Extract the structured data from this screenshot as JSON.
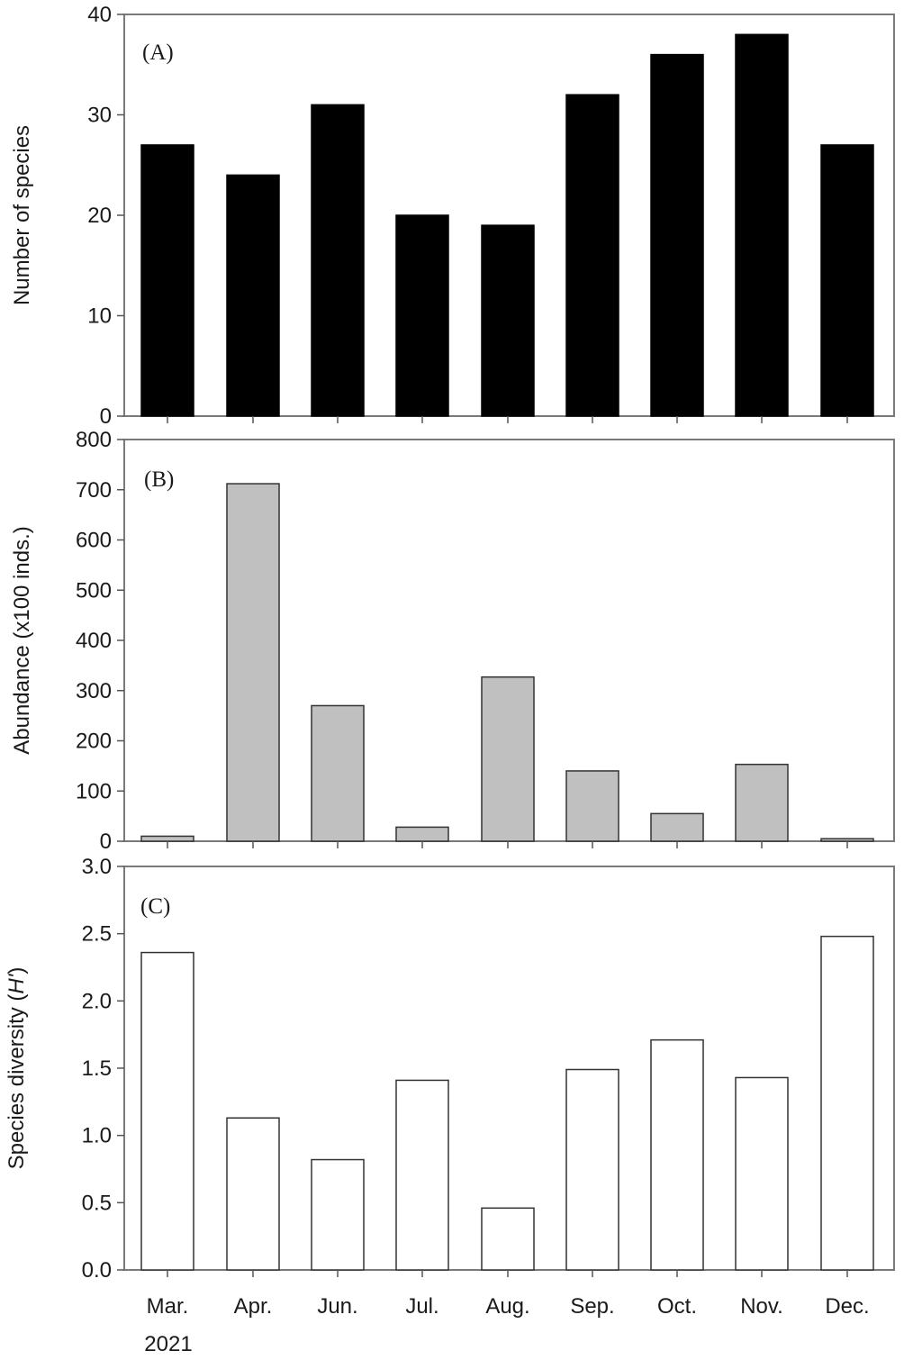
{
  "chart_data": [
    {
      "type": "bar",
      "panel_label": "(A)",
      "categories": [
        "Mar.",
        "Apr.",
        "Jun.",
        "Jul.",
        "Aug.",
        "Sep.",
        "Oct.",
        "Nov.",
        "Dec."
      ],
      "values": [
        27,
        24,
        31,
        20,
        19,
        32,
        36,
        38,
        27
      ],
      "ylabel": "Number of species",
      "ylim": [
        0,
        40
      ],
      "yticks": [
        "0",
        "10",
        "20",
        "30",
        "40"
      ],
      "bar_color": "#000000",
      "bar_stroke": "#000000",
      "grid": false
    },
    {
      "type": "bar",
      "panel_label": "(B)",
      "categories": [
        "Mar.",
        "Apr.",
        "Jun.",
        "Jul.",
        "Aug.",
        "Sep.",
        "Oct.",
        "Nov.",
        "Dec."
      ],
      "values": [
        10,
        712,
        270,
        28,
        327,
        140,
        55,
        153,
        5
      ],
      "ylabel": "Abundance (x100 inds.)",
      "ylim": [
        0,
        800
      ],
      "yticks": [
        "0",
        "100",
        "200",
        "300",
        "400",
        "500",
        "600",
        "700",
        "800"
      ],
      "bar_color": "#c0c0c0",
      "bar_stroke": "#333333",
      "grid": false
    },
    {
      "type": "bar",
      "panel_label": "(C)",
      "categories": [
        "Mar.",
        "Apr.",
        "Jun.",
        "Jul.",
        "Aug.",
        "Sep.",
        "Oct.",
        "Nov.",
        "Dec."
      ],
      "values": [
        2.36,
        1.13,
        0.82,
        1.41,
        0.46,
        1.49,
        1.71,
        1.43,
        2.48
      ],
      "ylabel_prefix": "Species diversity (",
      "ylabel_italic": "H'",
      "ylabel_suffix": ")",
      "ylim": [
        0,
        3.0
      ],
      "yticks": [
        "0.0",
        "0.5",
        "1.0",
        "1.5",
        "2.0",
        "2.5",
        "3.0"
      ],
      "xlabel_year": "2021",
      "bar_color": "#ffffff",
      "bar_stroke": "#333333",
      "grid": false
    }
  ]
}
